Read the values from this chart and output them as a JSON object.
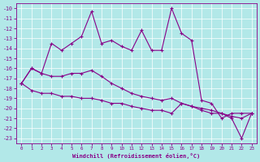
{
  "background_color": "#b2e8e8",
  "grid_color": "#c8e8e8",
  "grid_color2": "#ffffff",
  "line_color": "#880088",
  "x": [
    0,
    1,
    2,
    3,
    4,
    5,
    6,
    7,
    8,
    9,
    10,
    11,
    12,
    13,
    14,
    15,
    16,
    17,
    18,
    19,
    20,
    21,
    22,
    23
  ],
  "series1": [
    -17.5,
    -16.0,
    -16.5,
    -13.5,
    -14.2,
    -13.5,
    -12.8,
    -10.3,
    -13.5,
    -13.2,
    -13.8,
    -14.2,
    -12.2,
    -14.2,
    -14.2,
    -10.0,
    -12.5,
    -13.2,
    -19.2,
    -19.5,
    -21.0,
    -20.5,
    -20.5,
    -20.5
  ],
  "series2": [
    -17.5,
    -16.0,
    -16.5,
    -16.8,
    -16.8,
    -16.5,
    -16.5,
    -16.2,
    -16.8,
    -17.5,
    -18.0,
    -18.5,
    -18.8,
    -19.0,
    -19.2,
    -19.0,
    -19.5,
    -19.8,
    -20.0,
    -20.2,
    -20.5,
    -20.8,
    -21.0,
    -20.5
  ],
  "series3": [
    -17.5,
    -18.2,
    -18.5,
    -18.5,
    -18.8,
    -18.8,
    -19.0,
    -19.0,
    -19.2,
    -19.5,
    -19.5,
    -19.8,
    -20.0,
    -20.2,
    -20.2,
    -20.5,
    -19.5,
    -19.8,
    -20.2,
    -20.5,
    -20.5,
    -21.0,
    -23.0,
    -20.5
  ],
  "ylim": [
    -23.5,
    -9.5
  ],
  "xlim": [
    -0.5,
    23.5
  ],
  "yticks": [
    -10,
    -11,
    -12,
    -13,
    -14,
    -15,
    -16,
    -17,
    -18,
    -19,
    -20,
    -21,
    -22,
    -23
  ],
  "xticks": [
    0,
    1,
    2,
    3,
    4,
    5,
    6,
    7,
    8,
    9,
    10,
    11,
    12,
    13,
    14,
    15,
    16,
    17,
    18,
    19,
    20,
    21,
    22,
    23
  ],
  "xlabel": "Windchill (Refroidissement éolien,°C)"
}
